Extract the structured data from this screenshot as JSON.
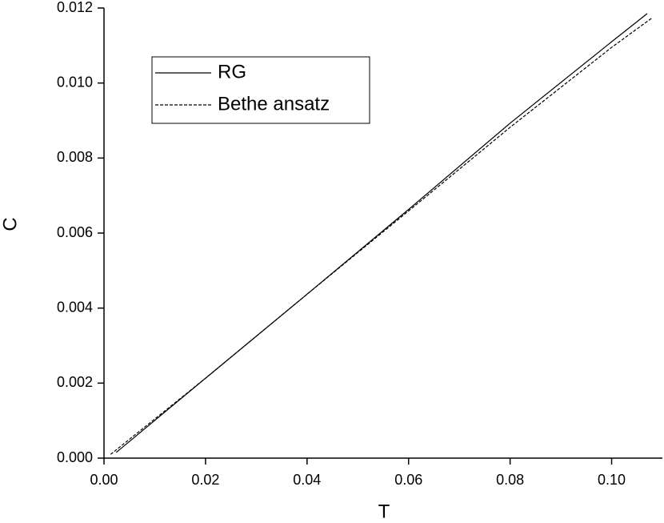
{
  "chart_data": {
    "type": "line",
    "x_label": "T",
    "y_label": "C",
    "xlim": [
      0,
      0.11
    ],
    "ylim": [
      0,
      0.012
    ],
    "xticks": [
      {
        "value": 0,
        "label": "0.00"
      },
      {
        "value": 0.02,
        "label": "0.02"
      },
      {
        "value": 0.04,
        "label": "0.04"
      },
      {
        "value": 0.06,
        "label": "0.06"
      },
      {
        "value": 0.08,
        "label": "0.08"
      },
      {
        "value": 0.1,
        "label": "0.10"
      }
    ],
    "yticks": [
      {
        "value": 0,
        "label": "0.000"
      },
      {
        "value": 0.002,
        "label": "0.002"
      },
      {
        "value": 0.004,
        "label": "0.004"
      },
      {
        "value": 0.006,
        "label": "0.006"
      },
      {
        "value": 0.008,
        "label": "0.008"
      },
      {
        "value": 0.01,
        "label": "0.010"
      },
      {
        "value": 0.012,
        "label": "0.012"
      }
    ],
    "legend": "upper left",
    "series": [
      {
        "name": "RG",
        "color": "#000000",
        "dash": "solid",
        "x": [
          0.0024,
          0.02,
          0.04,
          0.06,
          0.08,
          0.1,
          0.107
        ],
        "values": [
          0.00015,
          0.00213,
          0.00437,
          0.00663,
          0.00893,
          0.0111,
          0.01185
        ]
      },
      {
        "name": "Bethe ansatz",
        "color": "#000000",
        "dash": "dashed",
        "x": [
          0.0013,
          0.02,
          0.04,
          0.06,
          0.08,
          0.1,
          0.108
        ],
        "values": [
          0.0001,
          0.00213,
          0.00437,
          0.00659,
          0.00882,
          0.01095,
          0.01174
        ]
      }
    ]
  }
}
